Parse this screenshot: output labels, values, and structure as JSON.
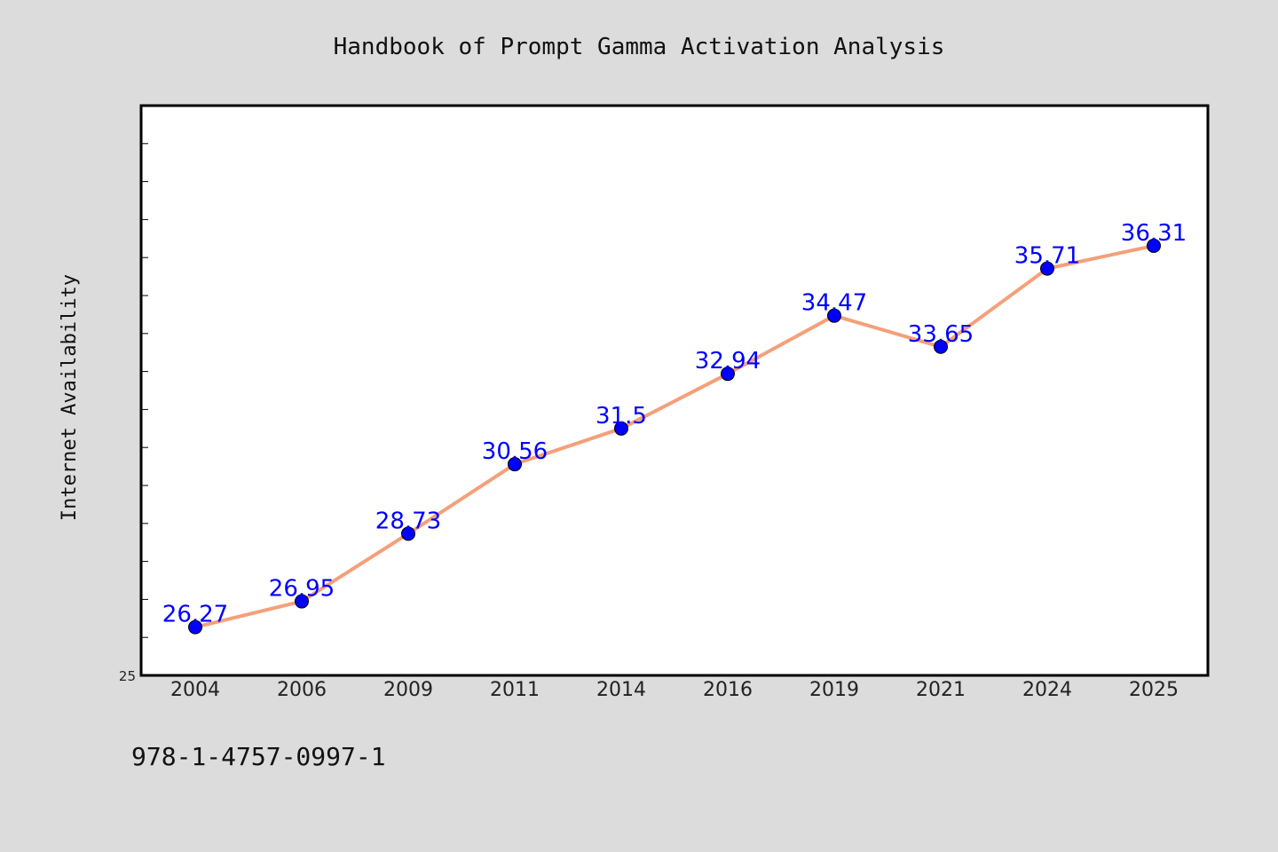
{
  "chart_data": {
    "type": "line",
    "title": "Handbook of Prompt Gamma Activation Analysis",
    "ylabel": "Internet Availability",
    "xlabel": "",
    "footer_text": "978-1-4757-0997-1",
    "categories": [
      "2004",
      "2006",
      "2009",
      "2011",
      "2014",
      "2016",
      "2019",
      "2021",
      "2024",
      "2025"
    ],
    "values": [
      26.27,
      26.95,
      28.73,
      30.56,
      31.5,
      32.94,
      34.47,
      33.65,
      35.71,
      36.31
    ],
    "data_labels": [
      "26.27",
      "26.95",
      "28.73",
      "30.56",
      "31.5",
      "32.94",
      "34.47",
      "33.65",
      "35.71",
      "36.31"
    ],
    "ylim": [
      25,
      40
    ],
    "y_tick_labels": [
      "25"
    ],
    "grid": false,
    "colors": {
      "line": "#f4a07a",
      "marker": "#0000ff",
      "data_label": "#0000ff",
      "background": "#dcdcdc",
      "plot_background": "#ffffff"
    }
  }
}
